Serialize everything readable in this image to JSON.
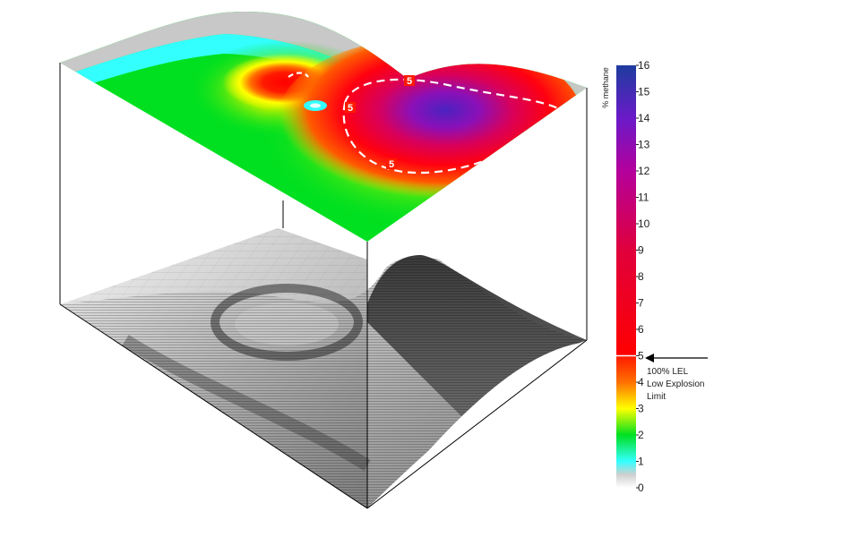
{
  "chart_data": {
    "type": "heatmap",
    "title": "",
    "colorbar": {
      "label": "% methane",
      "range": [
        0,
        16
      ],
      "ticks": [
        0,
        1,
        2,
        3,
        4,
        5,
        6,
        7,
        8,
        9,
        10,
        11,
        12,
        13,
        14,
        15,
        16
      ],
      "tick_labels": [
        "0",
        "1",
        "2",
        "3",
        "4",
        "5",
        "6",
        "7",
        "8",
        "9",
        "10",
        "11",
        "12",
        "13",
        "14",
        "15",
        "16"
      ],
      "colors": [
        {
          "value": 0,
          "color": "#ffffff"
        },
        {
          "value": 0.5,
          "color": "#cfcfcf"
        },
        {
          "value": 1,
          "color": "#33ffff"
        },
        {
          "value": 2,
          "color": "#00e020"
        },
        {
          "value": 3,
          "color": "#ffff00"
        },
        {
          "value": 4,
          "color": "#ff7000"
        },
        {
          "value": 4.99,
          "color": "#ff1a00"
        },
        {
          "value": 5,
          "color": "#ff0000"
        },
        {
          "value": 9,
          "color": "#e0003c"
        },
        {
          "value": 12,
          "color": "#b4009c"
        },
        {
          "value": 14,
          "color": "#6a1ac8"
        },
        {
          "value": 16,
          "color": "#1d3c9e"
        }
      ],
      "threshold": {
        "value": 5,
        "annotation": [
          "100% LEL",
          "Low Explosion",
          "Limit"
        ]
      }
    },
    "contour": {
      "level": 5,
      "style": "dashed",
      "color": "#ffffff",
      "labels": [
        "5",
        "5",
        "5"
      ]
    },
    "views": [
      "2D contour map (colored)",
      "3D surface (grayscale)"
    ]
  }
}
